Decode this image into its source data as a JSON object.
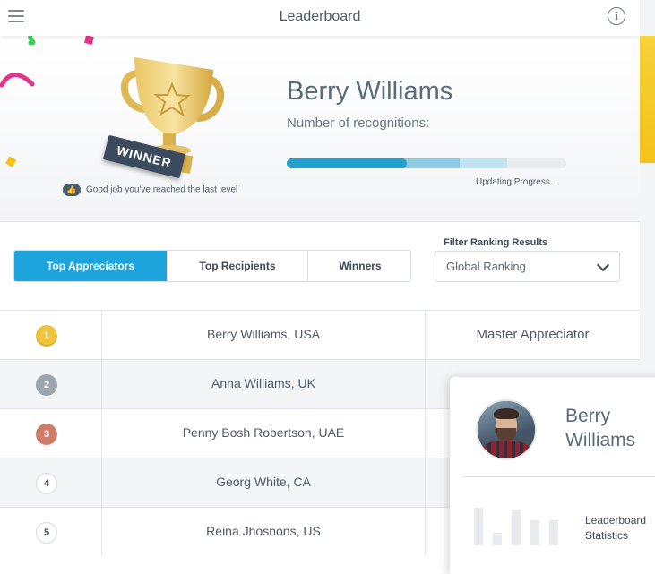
{
  "header": {
    "title": "Leaderboard",
    "menu_icon": "hamburger-menu-icon",
    "info_icon": "info-icon",
    "info_glyph": "i"
  },
  "hero": {
    "trophy_badge": "WINNER",
    "good_job_text": "Good job you've reached the last level",
    "user_name": "Berry Williams",
    "recognitions_label": "Number of recognitions:",
    "progress_segments": [
      0.43,
      0.62,
      0.79
    ],
    "progress_status": "Updating Progress..."
  },
  "tabs": [
    {
      "label": "Top Appreciators",
      "active": true
    },
    {
      "label": "Top Recipients",
      "active": false
    },
    {
      "label": "Winners",
      "active": false
    }
  ],
  "filter": {
    "label": "Filter Ranking Results",
    "value": "Global Ranking"
  },
  "leaderboard": [
    {
      "rank": "1",
      "name": "Berry Williams, USA",
      "title": "Master Appreciator",
      "medal": "gold"
    },
    {
      "rank": "2",
      "name": "Anna Williams, UK",
      "title": "",
      "medal": "silver"
    },
    {
      "rank": "3",
      "name": "Penny Bosh Robertson, UAE",
      "title": "",
      "medal": "bronze"
    },
    {
      "rank": "4",
      "name": "Georg White, CA",
      "title": "",
      "medal": "plain"
    },
    {
      "rank": "5",
      "name": "Reina Jhosnons, US",
      "title": "",
      "medal": "plain"
    }
  ],
  "profile_card": {
    "name": "Berry Williams",
    "stat_label": "Leaderboard Statistics"
  },
  "colors": {
    "accent": "#1ea4dc",
    "gold": "#f0c43c",
    "silver": "#9ca5ad",
    "bronze": "#cf7d6b",
    "yellow_side": "#f4c21a"
  }
}
